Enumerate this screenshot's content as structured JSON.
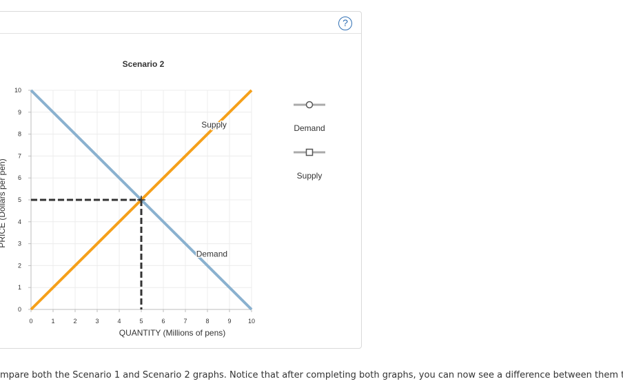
{
  "chart_data": {
    "type": "line",
    "title": "Scenario 2",
    "xlabel": "QUANTITY (Millions of pens)",
    "ylabel": "PRICE (Dollars per pen)",
    "xlim": [
      0,
      10
    ],
    "ylim": [
      0,
      10
    ],
    "x_ticks": [
      0,
      1,
      2,
      3,
      4,
      5,
      6,
      7,
      8,
      9,
      10
    ],
    "y_ticks": [
      0,
      1,
      2,
      3,
      4,
      5,
      6,
      7,
      8,
      9,
      10
    ],
    "grid": true,
    "series": [
      {
        "name": "Demand",
        "color": "#8ab1cf",
        "x": [
          0,
          10
        ],
        "y": [
          10,
          0
        ]
      },
      {
        "name": "Supply",
        "color": "#f5a01a",
        "x": [
          0,
          10
        ],
        "y": [
          0,
          10
        ]
      }
    ],
    "equilibrium": {
      "x": 5,
      "y": 5
    },
    "line_labels": [
      {
        "text": "Supply",
        "x": 8.3,
        "y": 8.3
      },
      {
        "text": "Demand",
        "x": 8.2,
        "y": 2.4
      }
    ],
    "legend": {
      "position": "right",
      "items": [
        {
          "label": "Demand",
          "marker": "circle",
          "color": "#aaaaaa"
        },
        {
          "label": "Supply",
          "marker": "square",
          "color": "#aaaaaa"
        }
      ]
    }
  },
  "help_icon": "?",
  "question_text": "mpare both the Scenario 1 and Scenario 2 graphs. Notice that after completing both graphs, you can now see a difference between them that"
}
